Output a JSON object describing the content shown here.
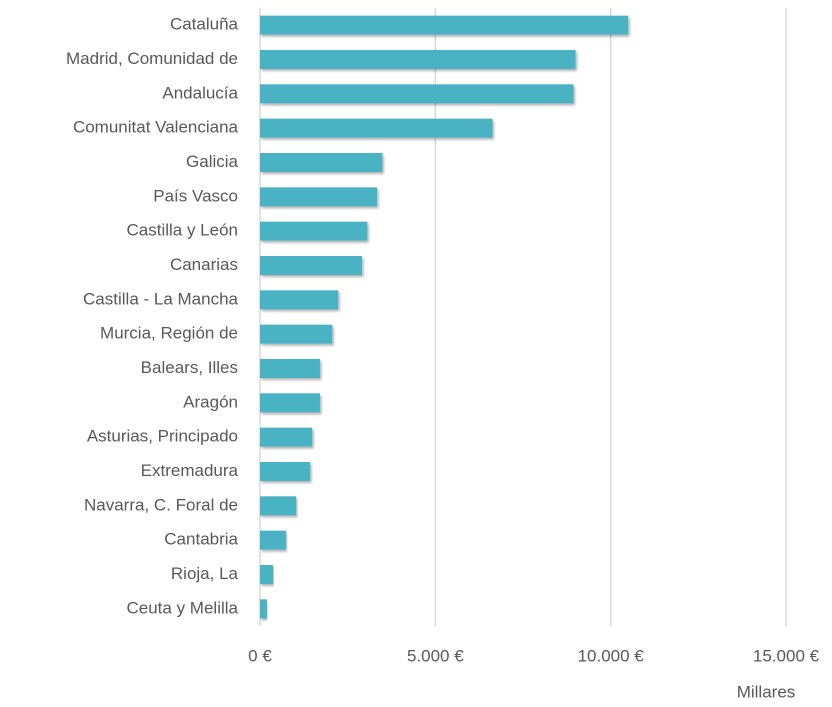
{
  "chart_data": {
    "type": "bar",
    "orientation": "horizontal",
    "categories": [
      "Cataluña",
      "Madrid, Comunidad de",
      "Andalucía",
      "Comunitat Valenciana",
      "Galicia",
      "País Vasco",
      "Castilla y León",
      "Canarias",
      "Castilla - La Mancha",
      "Murcia, Región de",
      "Balears, Illes",
      "Aragón",
      "Asturias, Principado",
      "Extremadura",
      "Navarra, C. Foral de",
      "Cantabria",
      "Rioja, La",
      "Ceuta y Melilla"
    ],
    "values": [
      10500,
      9000,
      8940,
      6630,
      3490,
      3340,
      3060,
      2910,
      2230,
      2060,
      1710,
      1710,
      1490,
      1430,
      1030,
      740,
      370,
      200
    ],
    "color": "#4ab2c3",
    "xlim": [
      0,
      15000
    ],
    "xticks": [
      {
        "value": 0,
        "label": "0 €"
      },
      {
        "value": 5000,
        "label": "5.000 €"
      },
      {
        "value": 10000,
        "label": "10.000 €"
      },
      {
        "value": 15000,
        "label": "15.000 €"
      }
    ],
    "x_label": "Millares",
    "grid": true
  }
}
